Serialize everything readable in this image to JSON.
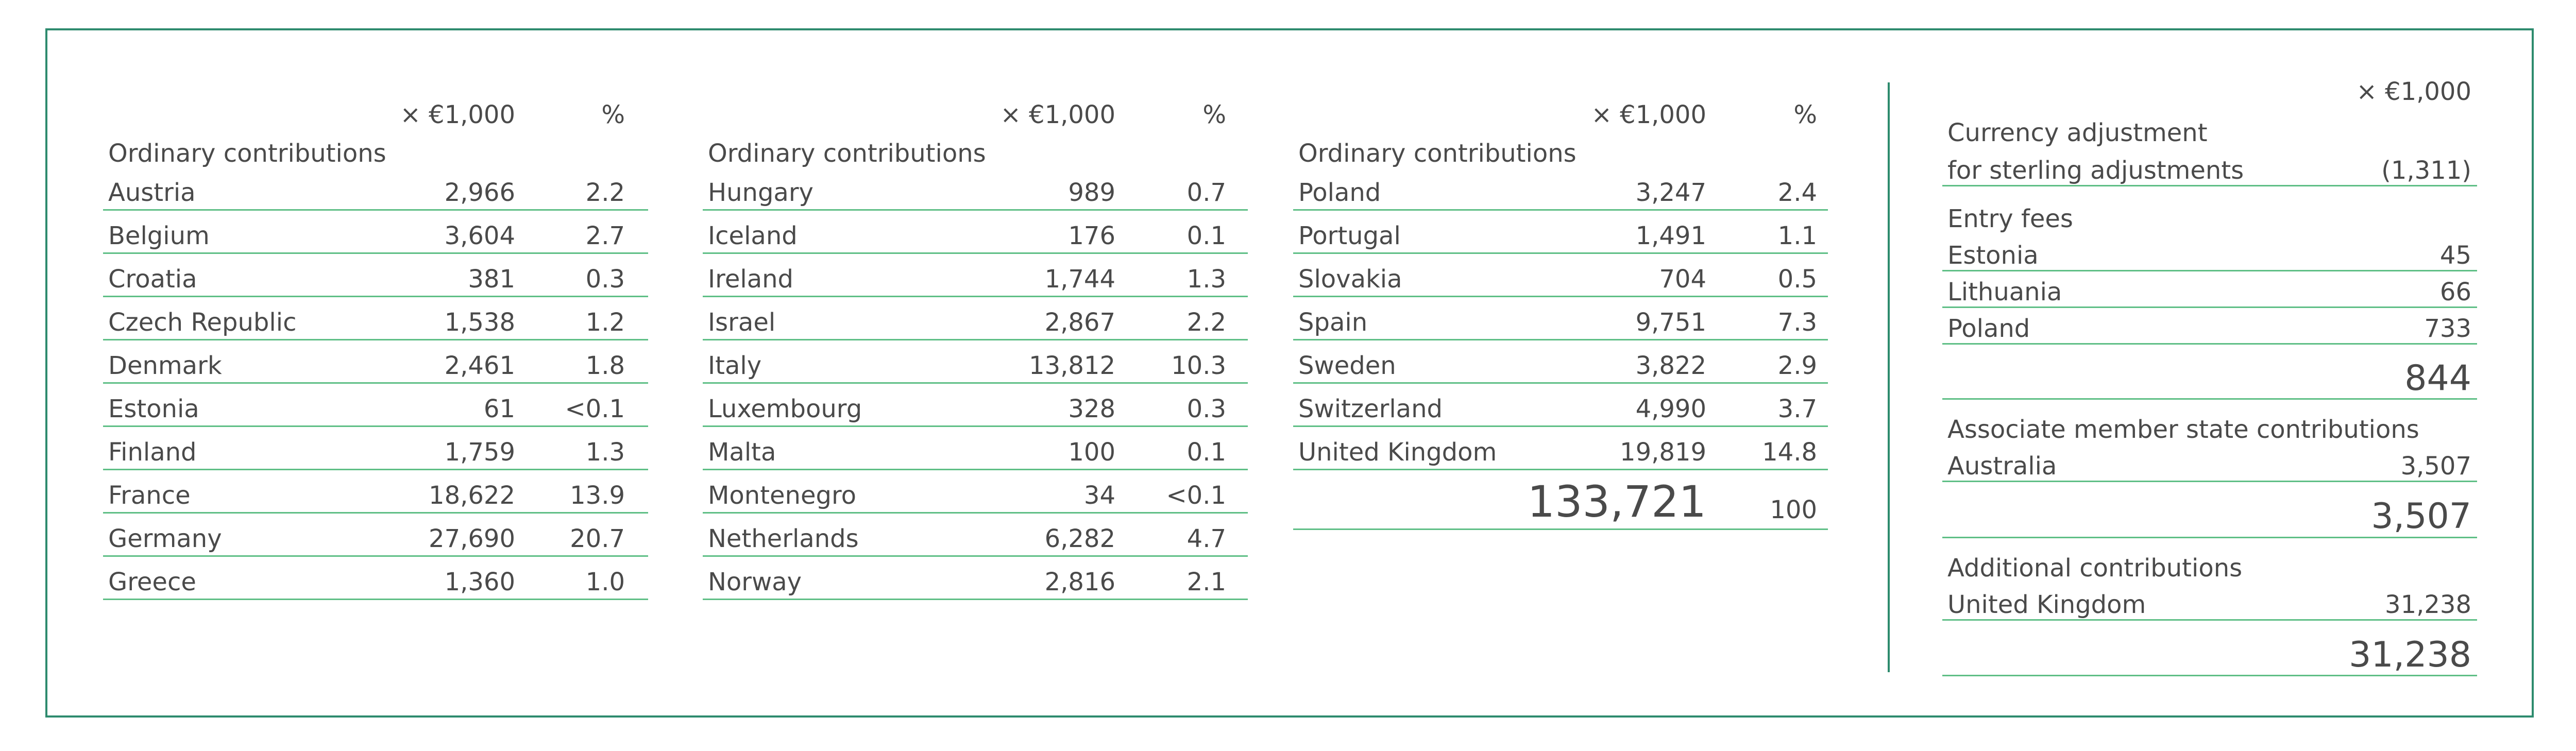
{
  "headers": {
    "amount": "× €1,000",
    "percent": "%"
  },
  "col1": {
    "group": "Ordinary contributions",
    "rows": [
      {
        "name": "Austria",
        "amount": "2,966",
        "pct": "2.2"
      },
      {
        "name": "Belgium",
        "amount": "3,604",
        "pct": "2.7"
      },
      {
        "name": "Croatia",
        "amount": "381",
        "pct": "0.3"
      },
      {
        "name": "Czech Republic",
        "amount": "1,538",
        "pct": "1.2"
      },
      {
        "name": "Denmark",
        "amount": "2,461",
        "pct": "1.8"
      },
      {
        "name": "Estonia",
        "amount": "61",
        "pct": "<0.1"
      },
      {
        "name": "Finland",
        "amount": "1,759",
        "pct": "1.3"
      },
      {
        "name": "France",
        "amount": "18,622",
        "pct": "13.9"
      },
      {
        "name": "Germany",
        "amount": "27,690",
        "pct": "20.7"
      },
      {
        "name": "Greece",
        "amount": "1,360",
        "pct": "1.0"
      }
    ]
  },
  "col2": {
    "group": "Ordinary contributions",
    "rows": [
      {
        "name": "Hungary",
        "amount": "989",
        "pct": "0.7"
      },
      {
        "name": "Iceland",
        "amount": "176",
        "pct": "0.1"
      },
      {
        "name": "Ireland",
        "amount": "1,744",
        "pct": "1.3"
      },
      {
        "name": "Israel",
        "amount": "2,867",
        "pct": "2.2"
      },
      {
        "name": "Italy",
        "amount": "13,812",
        "pct": "10.3"
      },
      {
        "name": "Luxembourg",
        "amount": "328",
        "pct": "0.3"
      },
      {
        "name": "Malta",
        "amount": "100",
        "pct": "0.1"
      },
      {
        "name": "Montenegro",
        "amount": "34",
        "pct": "<0.1"
      },
      {
        "name": "Netherlands",
        "amount": "6,282",
        "pct": "4.7"
      },
      {
        "name": "Norway",
        "amount": "2,816",
        "pct": "2.1"
      }
    ]
  },
  "col3": {
    "group": "Ordinary contributions",
    "rows": [
      {
        "name": "Poland",
        "amount": "3,247",
        "pct": "2.4"
      },
      {
        "name": "Portugal",
        "amount": "1,491",
        "pct": "1.1"
      },
      {
        "name": "Slovakia",
        "amount": "704",
        "pct": "0.5"
      },
      {
        "name": "Spain",
        "amount": "9,751",
        "pct": "7.3"
      },
      {
        "name": "Sweden",
        "amount": "3,822",
        "pct": "2.9"
      },
      {
        "name": "Switzerland",
        "amount": "4,990",
        "pct": "3.7"
      },
      {
        "name": "United Kingdom",
        "amount": "19,819",
        "pct": "14.8"
      }
    ],
    "total": "133,721",
    "total_pct": "100"
  },
  "col4": {
    "amount_header": "× €1,000",
    "currency": {
      "title": "Currency adjustment",
      "label": "for sterling adjustments",
      "value": "(1,311)"
    },
    "entry_fees": {
      "title": "Entry fees",
      "rows": [
        {
          "name": "Estonia",
          "amount": "45"
        },
        {
          "name": "Lithuania",
          "amount": "66"
        },
        {
          "name": "Poland",
          "amount": "733"
        }
      ],
      "total": "844"
    },
    "associate": {
      "title": "Associate member state contributions",
      "rows": [
        {
          "name": "Australia",
          "amount": "3,507"
        }
      ],
      "total": "3,507"
    },
    "additional": {
      "title": "Additional contributions",
      "rows": [
        {
          "name": "United Kingdom",
          "amount": "31,238"
        }
      ],
      "total": "31,238"
    }
  }
}
